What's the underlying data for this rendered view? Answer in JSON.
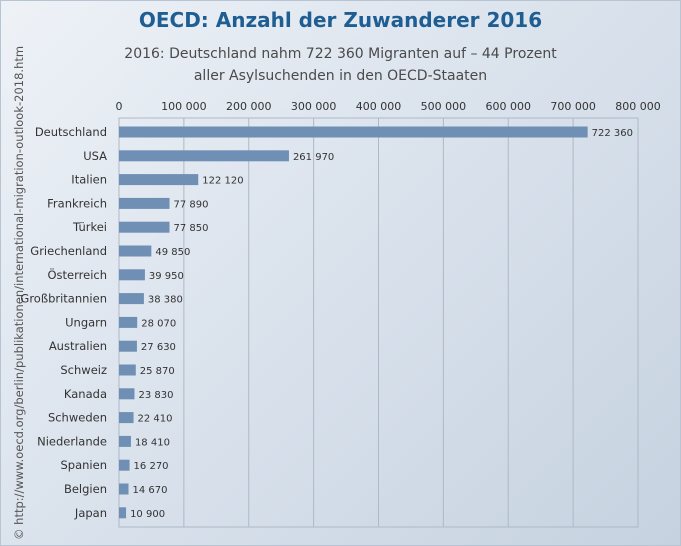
{
  "chart_data": {
    "type": "bar",
    "orientation": "horizontal",
    "title": "OECD: Anzahl der Zuwanderer 2016",
    "subtitle_lines": [
      "2016: Deutschland nahm 722 360 Migranten auf – 44 Prozent",
      "aller Asylsuchenden in den OECD-Staaten"
    ],
    "categories": [
      "Deutschland",
      "USA",
      "Italien",
      "Frankreich",
      "Türkei",
      "Griechenland",
      "Österreich",
      "Großbritannien",
      "Ungarn",
      "Australien",
      "Schweiz",
      "Kanada",
      "Schweden",
      "Niederlande",
      "Spanien",
      "Belgien",
      "Japan"
    ],
    "values": [
      722360,
      261970,
      122120,
      77890,
      77850,
      49850,
      39950,
      38380,
      28070,
      27630,
      25870,
      23830,
      22410,
      18410,
      16270,
      14670,
      10900
    ],
    "value_labels": [
      "722 360",
      "261 970",
      "122 120",
      "77 890",
      "77 850",
      "49 850",
      "39 950",
      "38 380",
      "28 070",
      "27 630",
      "25 870",
      "23 830",
      "22 410",
      "18 410",
      "16 270",
      "14 670",
      "10 900"
    ],
    "xlim": [
      0,
      800000
    ],
    "xticks": [
      0,
      100000,
      200000,
      300000,
      400000,
      500000,
      600000,
      700000,
      800000
    ],
    "xtick_labels": [
      "0",
      "100 000",
      "200 000",
      "300 000",
      "400 000",
      "500 000",
      "600 000",
      "700 000",
      "800 000"
    ],
    "x_axis_position": "top",
    "grid": true,
    "bar_color": "#6f8fb5"
  },
  "source": "© http://www.oecd.org/berlin/publikationen/international-migration-outlook-2018.htm"
}
